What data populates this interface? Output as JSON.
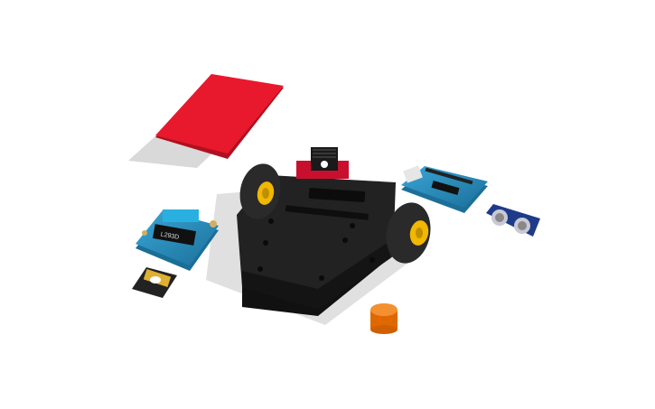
{
  "viewport": {
    "background": "#ffffff"
  },
  "parts": [
    {
      "name": "red-plate",
      "color": "#e8192c"
    },
    {
      "name": "robot-chassis",
      "color": "#1f1f1f"
    },
    {
      "name": "left-wheel",
      "color": "#2a2a2a",
      "hub_color": "#f0b800"
    },
    {
      "name": "right-wheel",
      "color": "#2a2a2a",
      "hub_color": "#f0b800"
    },
    {
      "name": "motor-shield",
      "color": "#1f8ab8",
      "label": "L293D"
    },
    {
      "name": "arduino-board",
      "color": "#2a8fbf"
    },
    {
      "name": "ultrasonic-sensor",
      "color": "#1e3b8a"
    },
    {
      "name": "battery-holder",
      "color": "#222222"
    },
    {
      "name": "orange-cylinder",
      "color": "#f07800"
    },
    {
      "name": "voltage-regulator",
      "color": "#c8102e"
    }
  ],
  "shield_chip_text": "L293D"
}
